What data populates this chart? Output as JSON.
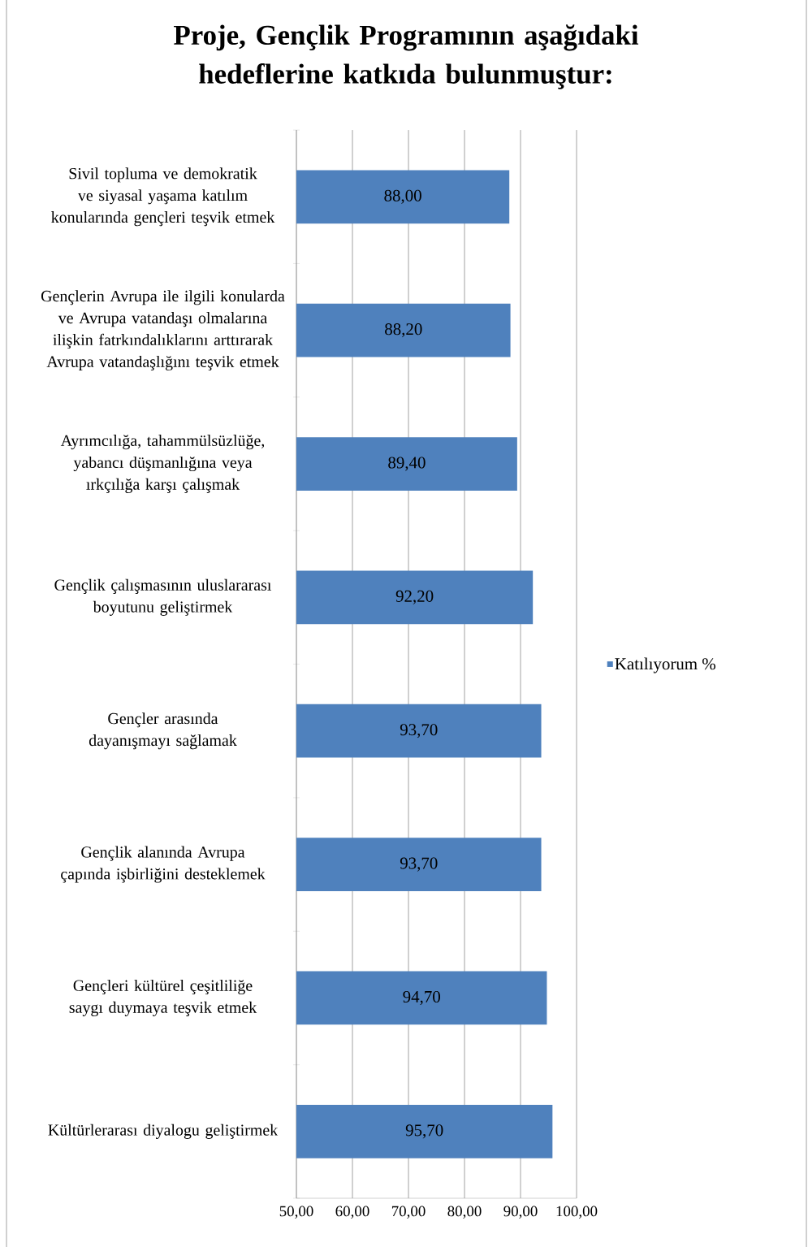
{
  "chart_data": {
    "type": "bar",
    "orientation": "horizontal",
    "title": "Proje, Gençlik Programının aşağıdaki hedeflerine katkıda bulunmuştur:",
    "categories": [
      "Sivil topluma ve demokratik ve siyasal yaşama katılım konularında gençleri teşvik etmek",
      "Gençlerin Avrupa ile ilgili konularda ve Avrupa vatandaşı olmalarına ilişkin fatrkındalıklarını arttırarak Avrupa vatandaşlığını teşvik etmek",
      "Ayrımcılığa, tahammülsüzlüğe, yabancı düşmanlığına veya ırkçılığa karşı çalışmak",
      "Gençlik çalışmasının uluslararası boyutunu geliştirmek",
      "Gençler arasında dayanışmayı sağlamak",
      "Gençlik alanında Avrupa çapında işbirliğini desteklemek",
      "Gençleri kültürel çeşitliliğe saygı duymaya teşvik etmek",
      "Kültürlerarası diyalogu geliştirmek"
    ],
    "series": [
      {
        "name": "Katılıyorum %",
        "color": "#4f81bd",
        "values": [
          88.0,
          88.2,
          89.4,
          92.2,
          93.7,
          93.7,
          94.7,
          95.7
        ],
        "value_labels": [
          "88,00",
          "88,20",
          "89,40",
          "92,20",
          "93,70",
          "93,70",
          "94,70",
          "95,70"
        ]
      }
    ],
    "xlim": [
      50,
      100
    ],
    "xticks": [
      {
        "value": 50,
        "label": "50,00"
      },
      {
        "value": 60,
        "label": "60,00"
      },
      {
        "value": 70,
        "label": "70,00"
      },
      {
        "value": 80,
        "label": "80,00"
      },
      {
        "value": 90,
        "label": "90,00"
      },
      {
        "value": 100,
        "label": "100,00"
      }
    ],
    "grid": "x",
    "legend": "right"
  }
}
